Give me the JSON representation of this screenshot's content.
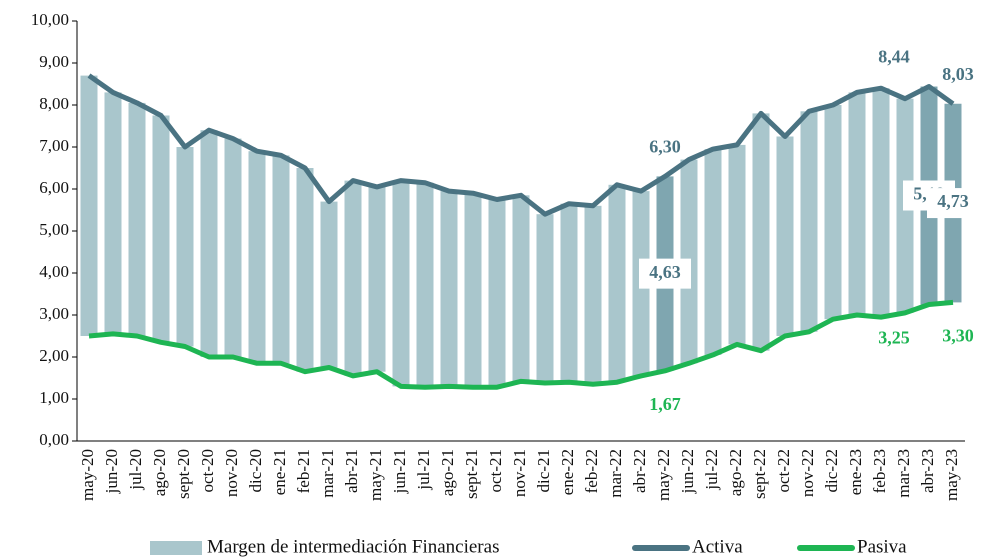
{
  "chart_data": {
    "type": "bar-line",
    "categories": [
      "may-20",
      "jun-20",
      "jul-20",
      "ago-20",
      "sept-20",
      "oct-20",
      "nov-20",
      "dic-20",
      "ene-21",
      "feb-21",
      "mar-21",
      "abr-21",
      "may-21",
      "jun-21",
      "jul-21",
      "ago-21",
      "sept-21",
      "oct-21",
      "nov-21",
      "dic-21",
      "ene-22",
      "feb-22",
      "mar-22",
      "abr-22",
      "may-22",
      "jun-22",
      "jul-22",
      "ago-22",
      "sept-22",
      "oct-22",
      "nov-22",
      "dic-22",
      "ene-23",
      "feb-23",
      "mar-23",
      "abr-23",
      "may-23"
    ],
    "series": [
      {
        "name": "Margen de intermediación Financieras",
        "kind": "bar",
        "color": "#a9c6cc",
        "highlight_color": "#7fa6b0",
        "highlight": [
          24,
          35,
          36
        ],
        "values": [
          6.2,
          5.75,
          5.55,
          5.4,
          4.75,
          5.4,
          5.2,
          5.05,
          4.95,
          4.85,
          3.95,
          4.65,
          4.4,
          4.9,
          4.87,
          4.65,
          4.62,
          4.47,
          4.43,
          4.02,
          4.25,
          4.25,
          4.7,
          4.4,
          4.63,
          4.85,
          4.9,
          4.75,
          5.65,
          4.75,
          5.25,
          5.1,
          5.3,
          5.45,
          5.1,
          5.19,
          4.73
        ],
        "value_labels": [
          null,
          null,
          null,
          null,
          null,
          null,
          null,
          null,
          null,
          null,
          null,
          null,
          null,
          null,
          null,
          null,
          null,
          null,
          null,
          null,
          null,
          null,
          null,
          null,
          "4,63",
          null,
          null,
          null,
          null,
          null,
          null,
          null,
          null,
          null,
          null,
          "5,19",
          "4,73"
        ]
      },
      {
        "name": "Activa",
        "kind": "line",
        "color": "#4a7382",
        "values": [
          8.7,
          8.3,
          8.05,
          7.75,
          7.0,
          7.4,
          7.2,
          6.9,
          6.8,
          6.5,
          5.7,
          6.2,
          6.05,
          6.2,
          6.15,
          5.95,
          5.9,
          5.75,
          5.85,
          5.4,
          5.65,
          5.6,
          6.1,
          5.95,
          6.3,
          6.7,
          6.95,
          7.05,
          7.8,
          7.25,
          7.85,
          8.0,
          8.3,
          8.4,
          8.15,
          8.44,
          8.03
        ],
        "value_labels": [
          null,
          null,
          null,
          null,
          null,
          null,
          null,
          null,
          null,
          null,
          null,
          null,
          null,
          null,
          null,
          null,
          null,
          null,
          null,
          null,
          null,
          null,
          null,
          null,
          "6,30",
          null,
          null,
          null,
          null,
          null,
          null,
          null,
          null,
          null,
          null,
          "8,44",
          "8,03"
        ]
      },
      {
        "name": "Pasiva",
        "kind": "line",
        "color": "#1eb553",
        "values": [
          2.5,
          2.55,
          2.5,
          2.35,
          2.25,
          2.0,
          2.0,
          1.85,
          1.85,
          1.65,
          1.75,
          1.55,
          1.65,
          1.3,
          1.28,
          1.3,
          1.28,
          1.28,
          1.42,
          1.38,
          1.4,
          1.35,
          1.4,
          1.55,
          1.67,
          1.85,
          2.05,
          2.3,
          2.15,
          2.5,
          2.6,
          2.9,
          3.0,
          2.95,
          3.05,
          3.25,
          3.3
        ],
        "value_labels": [
          null,
          null,
          null,
          null,
          null,
          null,
          null,
          null,
          null,
          null,
          null,
          null,
          null,
          null,
          null,
          null,
          null,
          null,
          null,
          null,
          null,
          null,
          null,
          null,
          "1,67",
          null,
          null,
          null,
          null,
          null,
          null,
          null,
          null,
          null,
          null,
          "3,25",
          "3,30"
        ]
      }
    ],
    "ylim": [
      0,
      10
    ],
    "yticks": [
      {
        "value": 0,
        "label": "0,00"
      },
      {
        "value": 1,
        "label": "1,00"
      },
      {
        "value": 2,
        "label": "2,00"
      },
      {
        "value": 3,
        "label": "3,00"
      },
      {
        "value": 4,
        "label": "4,00"
      },
      {
        "value": 5,
        "label": "5,00"
      },
      {
        "value": 6,
        "label": "6,00"
      },
      {
        "value": 7,
        "label": "7,00"
      },
      {
        "value": 8,
        "label": "8,00"
      },
      {
        "value": 9,
        "label": "9,00"
      },
      {
        "value": 10,
        "label": "10,00"
      }
    ],
    "legend": "bottom"
  }
}
